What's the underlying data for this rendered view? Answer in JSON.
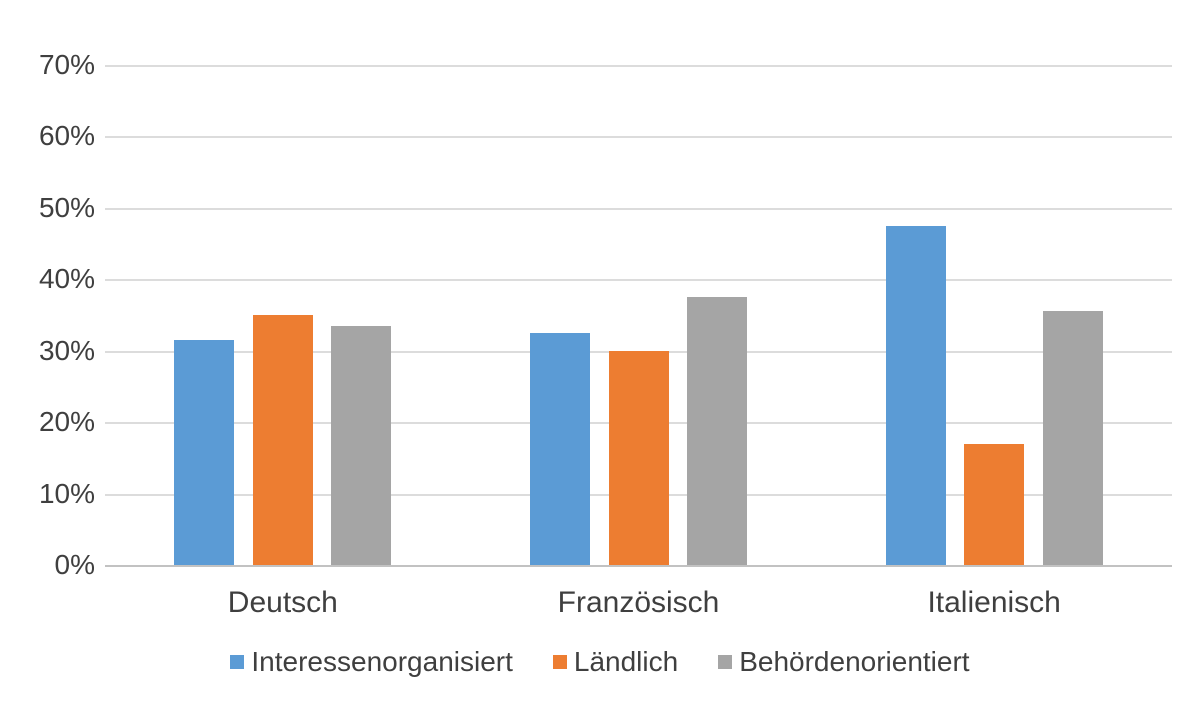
{
  "chart_data": {
    "type": "bar",
    "title": "",
    "categories": [
      "Deutsch",
      "Französisch",
      "Italienisch"
    ],
    "series": [
      {
        "name": "Interessenorganisiert",
        "color": "#5B9BD5",
        "values": [
          31.5,
          32.5,
          47.5
        ]
      },
      {
        "name": "Ländlich",
        "color": "#ED7D31",
        "values": [
          35.0,
          30.0,
          17.0
        ]
      },
      {
        "name": "Behördenorientiert",
        "color": "#A5A5A5",
        "values": [
          33.5,
          37.5,
          35.5
        ]
      }
    ],
    "y_axis": {
      "min": 0,
      "max": 70,
      "step": 10,
      "tick_labels": [
        "0%",
        "10%",
        "20%",
        "30%",
        "40%",
        "50%",
        "60%",
        "70%"
      ],
      "unit": "percent"
    },
    "x_axis": {
      "label": ""
    },
    "grid": true,
    "legend_position": "bottom",
    "colors": {
      "gridline": "#DCDCDC",
      "axis_line": "#C2C2C2",
      "text": "#3F3F3F",
      "background": "#FFFFFF"
    }
  }
}
